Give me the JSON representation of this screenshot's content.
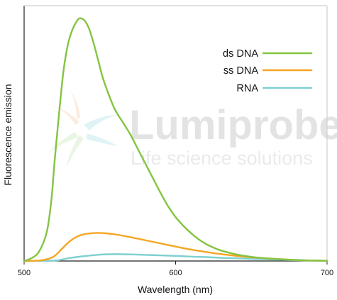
{
  "chart_data": {
    "type": "line",
    "title": "",
    "xlabel": "Wavelength (nm)",
    "ylabel": "Fluorescence emission",
    "xlim": [
      500,
      700
    ],
    "ylim": [
      0,
      1
    ],
    "x_ticks": [
      500,
      600,
      700
    ],
    "x_tick_labels": [
      "500",
      "600",
      "700"
    ],
    "grid": false,
    "legend_position": "top-right",
    "series": [
      {
        "name": "ds DNA",
        "color": "#84c441",
        "points": [
          [
            500,
            0
          ],
          [
            505,
            0.012
          ],
          [
            510,
            0.04
          ],
          [
            515,
            0.12
          ],
          [
            518,
            0.25
          ],
          [
            520,
            0.4
          ],
          [
            523,
            0.6
          ],
          [
            526,
            0.78
          ],
          [
            529,
            0.89
          ],
          [
            532,
            0.95
          ],
          [
            535,
            0.985
          ],
          [
            537,
            0.995
          ],
          [
            540,
            0.985
          ],
          [
            543,
            0.95
          ],
          [
            546,
            0.89
          ],
          [
            549,
            0.82
          ],
          [
            552,
            0.75
          ],
          [
            556,
            0.68
          ],
          [
            560,
            0.62
          ],
          [
            565,
            0.57
          ],
          [
            570,
            0.52
          ],
          [
            575,
            0.46
          ],
          [
            580,
            0.4
          ],
          [
            585,
            0.34
          ],
          [
            590,
            0.28
          ],
          [
            595,
            0.225
          ],
          [
            600,
            0.18
          ],
          [
            605,
            0.145
          ],
          [
            610,
            0.115
          ],
          [
            615,
            0.09
          ],
          [
            620,
            0.07
          ],
          [
            625,
            0.055
          ],
          [
            630,
            0.043
          ],
          [
            640,
            0.027
          ],
          [
            650,
            0.017
          ],
          [
            660,
            0.011
          ],
          [
            670,
            0.007
          ],
          [
            680,
            0.004
          ],
          [
            690,
            0.002
          ],
          [
            700,
            0.001
          ]
        ]
      },
      {
        "name": "ss DNA",
        "color": "#f5a623",
        "points": [
          [
            500,
            0
          ],
          [
            510,
            0.002
          ],
          [
            515,
            0.007
          ],
          [
            520,
            0.02
          ],
          [
            525,
            0.05
          ],
          [
            530,
            0.08
          ],
          [
            535,
            0.1
          ],
          [
            540,
            0.11
          ],
          [
            545,
            0.114
          ],
          [
            550,
            0.115
          ],
          [
            555,
            0.113
          ],
          [
            560,
            0.109
          ],
          [
            570,
            0.098
          ],
          [
            580,
            0.085
          ],
          [
            590,
            0.072
          ],
          [
            600,
            0.059
          ],
          [
            610,
            0.047
          ],
          [
            620,
            0.037
          ],
          [
            630,
            0.028
          ],
          [
            640,
            0.021
          ],
          [
            650,
            0.015
          ],
          [
            660,
            0.011
          ],
          [
            670,
            0.007
          ],
          [
            680,
            0.004
          ],
          [
            690,
            0.002
          ],
          [
            700,
            0.001
          ]
        ]
      },
      {
        "name": "RNA",
        "color": "#7fcfcf",
        "points": [
          [
            500,
            0
          ],
          [
            520,
            0.002
          ],
          [
            525,
            0.006
          ],
          [
            530,
            0.012
          ],
          [
            540,
            0.02
          ],
          [
            550,
            0.026
          ],
          [
            560,
            0.028
          ],
          [
            570,
            0.027
          ],
          [
            580,
            0.025
          ],
          [
            590,
            0.023
          ],
          [
            600,
            0.021
          ],
          [
            610,
            0.018
          ],
          [
            620,
            0.016
          ],
          [
            630,
            0.013
          ],
          [
            640,
            0.011
          ],
          [
            650,
            0.009
          ],
          [
            660,
            0.007
          ],
          [
            670,
            0.005
          ],
          [
            680,
            0.003
          ],
          [
            690,
            0.002
          ],
          [
            700,
            0.001
          ]
        ]
      }
    ]
  },
  "watermark": {
    "brand": "Lumiprobe",
    "tagline": "Life science solutions"
  }
}
